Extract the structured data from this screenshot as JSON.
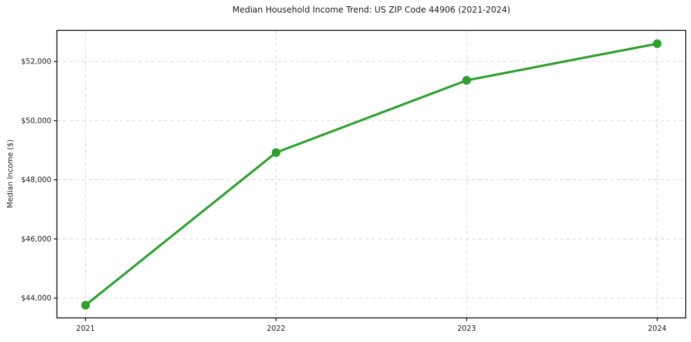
{
  "title": "Median Household Income Trend: US ZIP Code 44906 (2021-2024)",
  "colors": {
    "line": "#2ca02c",
    "marker": "#2ca02c",
    "grid": "#d5d5d5",
    "axis": "#000000",
    "text": "#1c1c1c",
    "background": "#ffffff"
  },
  "chart_data": {
    "type": "line",
    "title": "Median Household Income Trend: US ZIP Code 44906 (2021-2024)",
    "xlabel": "",
    "ylabel": "Median Income ($)",
    "x": [
      2021,
      2022,
      2023,
      2024
    ],
    "series": [
      {
        "name": "Median Household Income",
        "values": [
          43760,
          48920,
          51360,
          52600
        ]
      }
    ],
    "xticks": [
      2021,
      2022,
      2023,
      2024
    ],
    "xtick_labels": [
      "2021",
      "2022",
      "2023",
      "2024"
    ],
    "yticks": [
      44000,
      46000,
      48000,
      50000,
      52000
    ],
    "ytick_labels": [
      "$44,000",
      "$46,000",
      "$48,000",
      "$50,000",
      "$52,000"
    ],
    "xlim": [
      2020.85,
      2024.15
    ],
    "ylim": [
      43330,
      53050
    ],
    "grid": true,
    "grid_style": "dashed",
    "legend_position": "none",
    "marker": "circle"
  }
}
